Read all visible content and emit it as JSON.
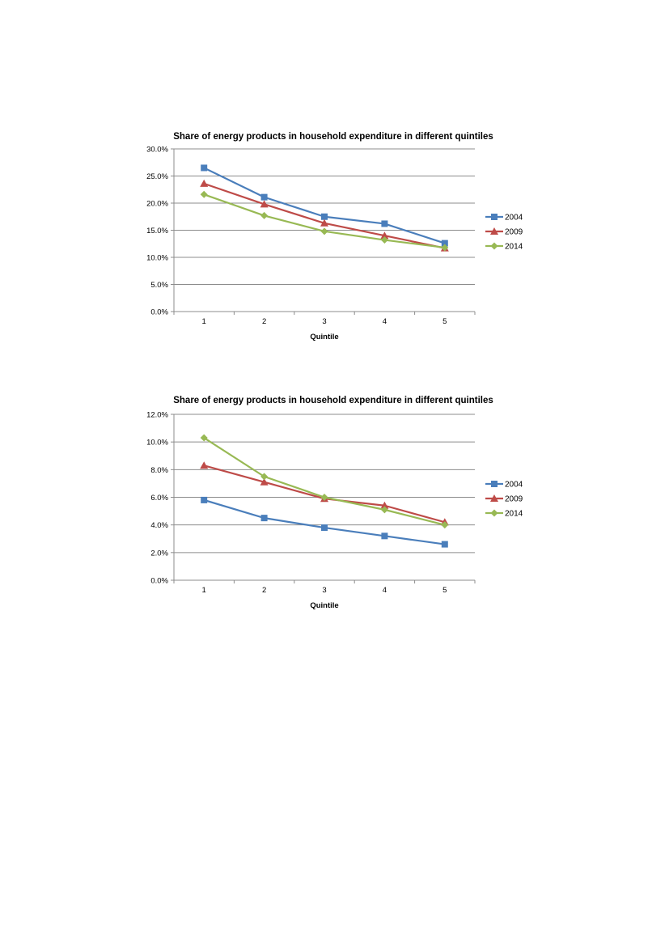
{
  "chart_data": [
    {
      "type": "line",
      "title": "Share of energy products in household expenditure in different quintiles",
      "xlabel": "Quintile",
      "ylabel": "",
      "categories": [
        "1",
        "2",
        "3",
        "4",
        "5"
      ],
      "ylim": [
        0,
        0.3
      ],
      "yticks": [
        "0.0%",
        "5.0%",
        "10.0%",
        "15.0%",
        "20.0%",
        "25.0%",
        "30.0%"
      ],
      "grid": "horizontal",
      "legend_position": "right",
      "series": [
        {
          "name": "2004",
          "values": [
            0.265,
            0.211,
            0.175,
            0.162,
            0.126
          ],
          "color": "#4a7ebb",
          "marker": "square"
        },
        {
          "name": "2009",
          "values": [
            0.236,
            0.198,
            0.163,
            0.14,
            0.117
          ],
          "color": "#be4b48",
          "marker": "triangle"
        },
        {
          "name": "2014",
          "values": [
            0.216,
            0.177,
            0.148,
            0.132,
            0.118
          ],
          "color": "#98b954",
          "marker": "diamond"
        }
      ]
    },
    {
      "type": "line",
      "title": "Share of energy products in household expenditure in different quintiles",
      "xlabel": "Quintile",
      "ylabel": "",
      "categories": [
        "1",
        "2",
        "3",
        "4",
        "5"
      ],
      "ylim": [
        0,
        0.12
      ],
      "yticks": [
        "0.0%",
        "2.0%",
        "4.0%",
        "6.0%",
        "8.0%",
        "10.0%",
        "12.0%"
      ],
      "grid": "horizontal",
      "legend_position": "right",
      "series": [
        {
          "name": "2004",
          "values": [
            0.058,
            0.045,
            0.038,
            0.032,
            0.026
          ],
          "color": "#4a7ebb",
          "marker": "square"
        },
        {
          "name": "2009",
          "values": [
            0.083,
            0.071,
            0.059,
            0.054,
            0.042
          ],
          "color": "#be4b48",
          "marker": "triangle"
        },
        {
          "name": "2014",
          "values": [
            0.103,
            0.075,
            0.06,
            0.051,
            0.04
          ],
          "color": "#98b954",
          "marker": "diamond"
        }
      ]
    }
  ]
}
